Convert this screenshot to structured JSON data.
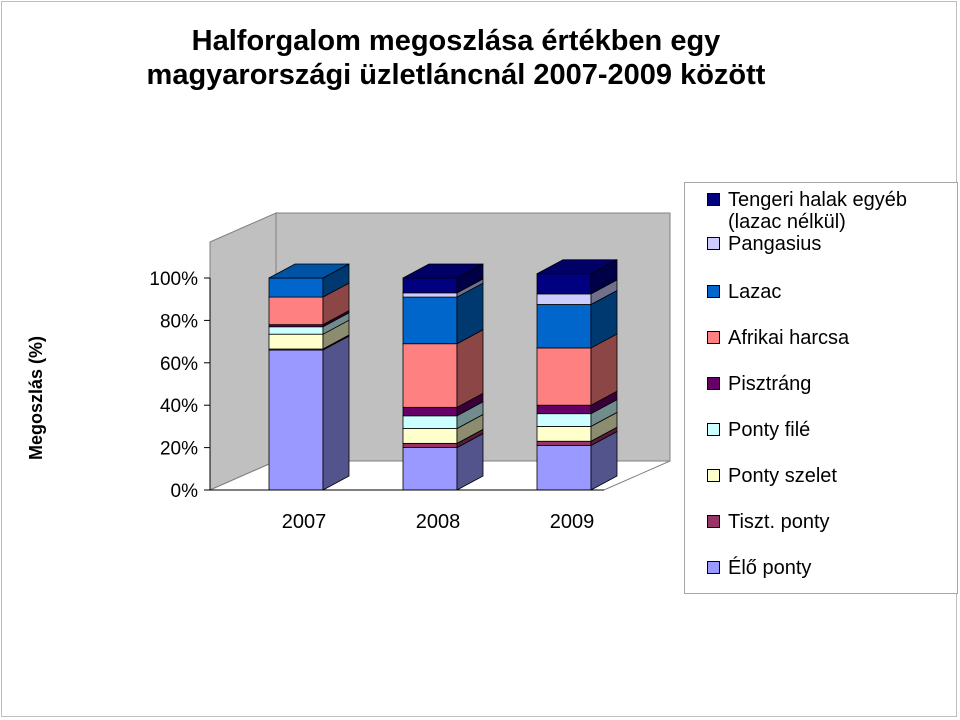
{
  "chart_data": {
    "type": "bar",
    "stacked": true,
    "stacked_percent": true,
    "three_d": true,
    "title": [
      "Halforgalom megoszlása értékben egy",
      "magyarországi üzletláncnál 2007-2009 között"
    ],
    "ylabel": "Megoszlás (%)",
    "xlabel": "",
    "ylim": [
      0,
      100
    ],
    "yticks": [
      "0%",
      "20%",
      "40%",
      "60%",
      "80%",
      "100%"
    ],
    "categories": [
      "2007",
      "2008",
      "2009"
    ],
    "legend_position": "right",
    "grid": false,
    "series": [
      {
        "name": "Élő ponty",
        "color": "#9999ff",
        "values": [
          66,
          20,
          21
        ]
      },
      {
        "name": "Tiszt. ponty",
        "color": "#993366",
        "values": [
          0.5,
          2,
          2
        ]
      },
      {
        "name": "Ponty szelet",
        "color": "#ffffcc",
        "values": [
          7,
          7,
          7
        ]
      },
      {
        "name": "Ponty filé",
        "color": "#ccffff",
        "values": [
          3.5,
          6,
          6
        ]
      },
      {
        "name": "Pisztráng",
        "color": "#660066",
        "values": [
          1,
          4,
          4
        ]
      },
      {
        "name": "Afrikai harcsa",
        "color": "#ff8080",
        "values": [
          13,
          30,
          27
        ]
      },
      {
        "name": "Lazac",
        "color": "#0066cc",
        "values": [
          9,
          22,
          20.5
        ]
      },
      {
        "name": "Pangasius",
        "color": "#ccccff",
        "values": [
          0,
          2,
          5
        ]
      },
      {
        "name": "Tengeri halak egyéb (lazac nélkül)",
        "color": "#000080",
        "values": [
          0,
          7,
          9.5
        ]
      }
    ]
  }
}
